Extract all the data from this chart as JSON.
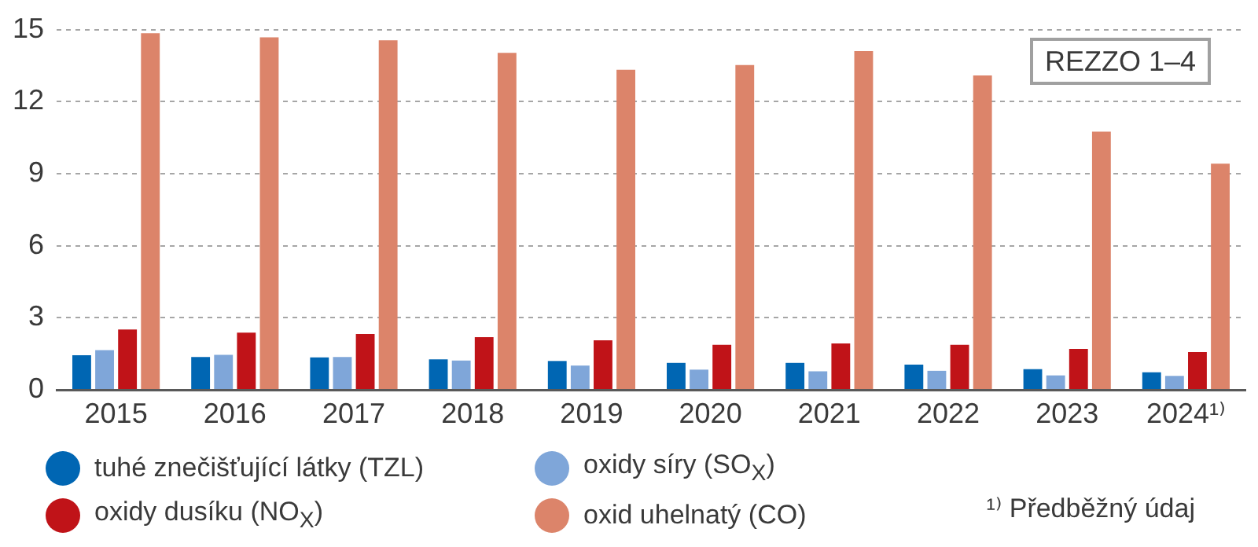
{
  "chart_data": {
    "type": "bar",
    "categories": [
      "2015",
      "2016",
      "2017",
      "2018",
      "2019",
      "2020",
      "2021",
      "2022",
      "2023",
      "2024¹⁾"
    ],
    "series": [
      {
        "name": "tuhé znečišťující látky (TZL)",
        "color": "#0066b3",
        "values": [
          1.44,
          1.37,
          1.35,
          1.27,
          1.2,
          1.12,
          1.12,
          1.05,
          0.86,
          0.73
        ]
      },
      {
        "name": "oxidy síry (SO$_{X}$)",
        "color": "#7fa6d9",
        "values": [
          1.65,
          1.46,
          1.37,
          1.22,
          1.01,
          0.84,
          0.77,
          0.79,
          0.6,
          0.58
        ]
      },
      {
        "name": "oxidy dusíku (NO$_{X}$)",
        "color": "#c01318",
        "values": [
          2.51,
          2.38,
          2.32,
          2.19,
          2.06,
          1.87,
          1.93,
          1.87,
          1.7,
          1.57
        ]
      },
      {
        "name": "oxid uhelnatý (CO)",
        "color": "#dc846a",
        "values": [
          14.85,
          14.68,
          14.55,
          14.03,
          13.33,
          13.52,
          14.1,
          13.09,
          10.75,
          9.42
        ]
      }
    ],
    "ylim": [
      0,
      15
    ],
    "yticks": [
      0,
      3,
      6,
      9,
      12,
      15
    ],
    "grid": "y",
    "legend": "bottom",
    "annotations": [
      "REZZO 1–4",
      "¹⁾ Předběžný údaj"
    ]
  }
}
